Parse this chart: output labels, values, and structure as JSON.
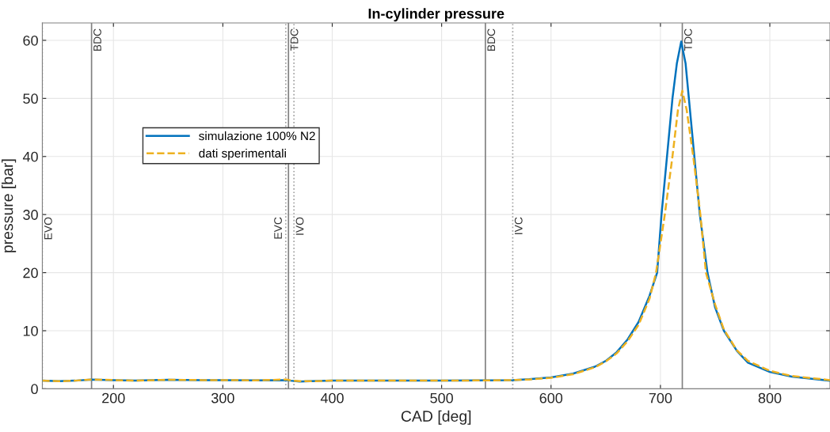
{
  "chart_data": {
    "type": "line",
    "title": "In-cylinder pressure",
    "xlabel": "CAD [deg]",
    "ylabel": "pressure [bar]",
    "xlim": [
      135,
      855
    ],
    "xticks": [
      200,
      300,
      400,
      500,
      600,
      700,
      800
    ],
    "ylim": [
      0,
      63
    ],
    "yticks": [
      0,
      10,
      20,
      30,
      40,
      50,
      60
    ],
    "grid": true,
    "legend": "top left",
    "series": [
      {
        "name": "simulazione 100% N2",
        "color": "#0072bd",
        "line_style": "solid",
        "x": [
          135,
          150,
          165,
          180,
          200,
          220,
          250,
          280,
          300,
          330,
          358,
          362,
          370,
          380,
          400,
          450,
          500,
          540,
          565,
          580,
          600,
          620,
          640,
          650,
          660,
          670,
          680,
          690,
          697,
          701,
          706,
          711,
          715,
          719,
          723,
          726,
          731,
          736,
          743,
          750,
          758,
          770,
          780,
          800,
          820,
          840,
          855
        ],
        "values": [
          1.4,
          1.3,
          1.4,
          1.6,
          1.5,
          1.4,
          1.55,
          1.5,
          1.5,
          1.45,
          1.5,
          1.4,
          1.25,
          1.3,
          1.4,
          1.4,
          1.4,
          1.45,
          1.5,
          1.65,
          1.95,
          2.6,
          3.8,
          4.8,
          6.3,
          8.5,
          11.5,
          16,
          20,
          30,
          40,
          50,
          56,
          59.8,
          56,
          50,
          40,
          30,
          20,
          14,
          10,
          6.5,
          4.5,
          2.9,
          2.1,
          1.7,
          1.4
        ]
      },
      {
        "name": "dati sperimentali",
        "color": "#edb120",
        "line_style": "dashed",
        "x": [
          135,
          150,
          165,
          180,
          200,
          220,
          250,
          280,
          300,
          330,
          358,
          362,
          370,
          380,
          400,
          450,
          500,
          540,
          565,
          580,
          600,
          620,
          640,
          650,
          660,
          670,
          680,
          690,
          696,
          704,
          711,
          716,
          720,
          724,
          730,
          736.5,
          741.6,
          750,
          758,
          770,
          780,
          800,
          820,
          840,
          855
        ],
        "values": [
          1.4,
          1.3,
          1.4,
          1.6,
          1.5,
          1.4,
          1.55,
          1.5,
          1.5,
          1.45,
          1.6,
          1.45,
          1.3,
          1.3,
          1.4,
          1.4,
          1.4,
          1.45,
          1.5,
          1.6,
          1.9,
          2.5,
          3.7,
          4.7,
          6.1,
          8.2,
          11,
          15.5,
          20,
          30,
          40,
          48,
          51.3,
          48,
          40,
          30,
          20,
          14.5,
          10.2,
          6.6,
          4.8,
          3.1,
          2.2,
          1.8,
          1.5
        ]
      }
    ],
    "ref_lines": [
      {
        "axis": "x",
        "value": 135,
        "label": "EVO",
        "color": "#a0a0a0",
        "line_style": "dotted"
      },
      {
        "axis": "x",
        "value": 180,
        "label": "BDC",
        "color": "#808080",
        "line_style": "solid"
      },
      {
        "axis": "x",
        "value": 357.5,
        "label": "EVC",
        "color": "#a0a0a0",
        "line_style": "dotted"
      },
      {
        "axis": "x",
        "value": 360,
        "label": "TDC",
        "color": "#808080",
        "line_style": "solid"
      },
      {
        "axis": "x",
        "value": 365,
        "label": "IVO",
        "color": "#a0a0a0",
        "line_style": "dotted"
      },
      {
        "axis": "x",
        "value": 540,
        "label": "BDC",
        "color": "#808080",
        "line_style": "solid"
      },
      {
        "axis": "x",
        "value": 565,
        "label": "IVC",
        "color": "#a0a0a0",
        "line_style": "dotted"
      },
      {
        "axis": "x",
        "value": 720,
        "label": "TDC",
        "color": "#808080",
        "line_style": "solid"
      }
    ]
  }
}
